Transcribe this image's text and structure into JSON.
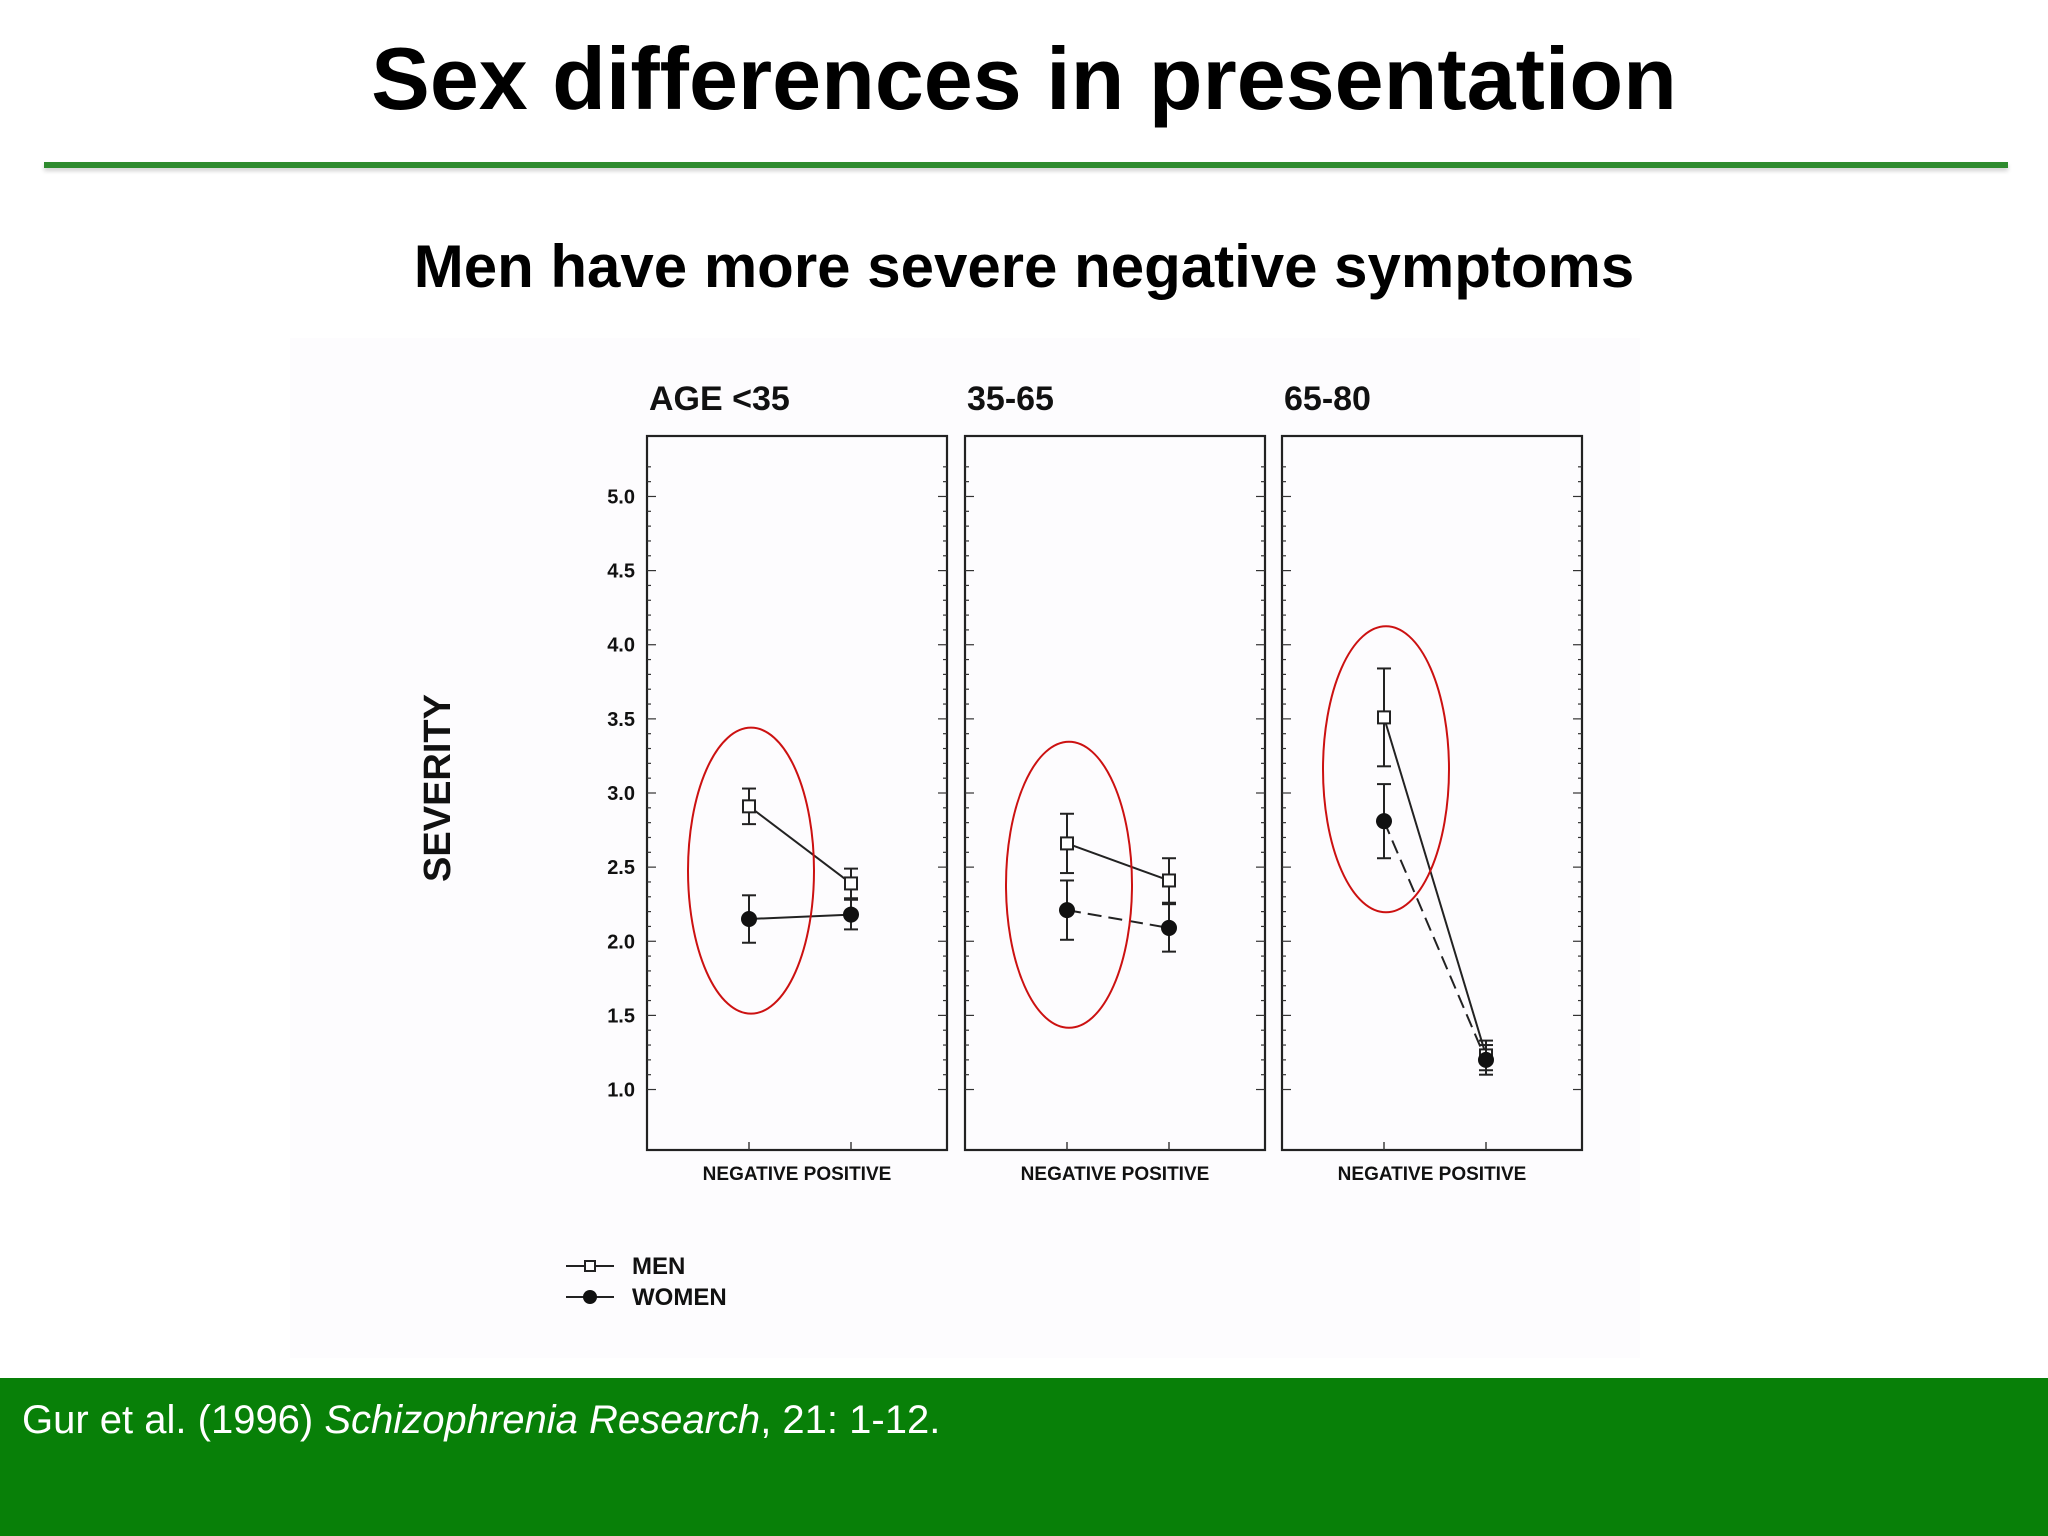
{
  "slide": {
    "title": "Sex differences in presentation",
    "subtitle": "Men have more severe negative symptoms"
  },
  "citation": {
    "authors": "Gur et al. (1996) ",
    "journal": "Schizophrenia Research",
    "rest": ", 21: 1-12."
  },
  "colors": {
    "title_rule": "#2e8b2e",
    "footer": "#088008",
    "highlight_ellipse": "#cc1111"
  },
  "chart_data": {
    "type": "line",
    "ylabel": "SEVERITY",
    "ylim": [
      0.7,
      5.3
    ],
    "yticks": [
      "1.0",
      "1.5",
      "2.0",
      "2.5",
      "3.0",
      "3.5",
      "4.0",
      "4.5",
      "5.0"
    ],
    "categories": [
      "NEGATIVE",
      "POSITIVE"
    ],
    "panels": [
      {
        "title": "AGE <35",
        "xlabel": "NEGATIVE POSITIVE",
        "series": [
          {
            "name": "MEN",
            "values": [
              2.91,
              2.39
            ],
            "err": [
              0.12,
              0.1
            ]
          },
          {
            "name": "WOMEN",
            "values": [
              2.15,
              2.18
            ],
            "err": [
              0.16,
              0.1
            ]
          }
        ],
        "highlight": "NEGATIVE"
      },
      {
        "title": "35-65",
        "xlabel": "NEGATIVE POSITIVE",
        "series": [
          {
            "name": "MEN",
            "values": [
              2.66,
              2.41
            ],
            "err": [
              0.2,
              0.15
            ]
          },
          {
            "name": "WOMEN",
            "values": [
              2.21,
              2.09
            ],
            "err": [
              0.2,
              0.16
            ]
          }
        ],
        "highlight": "NEGATIVE"
      },
      {
        "title": "65-80",
        "xlabel": "NEGATIVE POSITIVE",
        "series": [
          {
            "name": "MEN",
            "values": [
              3.51,
              1.23
            ],
            "err": [
              0.33,
              0.1
            ]
          },
          {
            "name": "WOMEN",
            "values": [
              2.81,
              1.2
            ],
            "err": [
              0.25,
              0.1
            ]
          }
        ],
        "highlight": "NEGATIVE"
      }
    ],
    "legend": {
      "placement": "bottom-left",
      "entries": [
        {
          "label": "MEN",
          "marker": "open-square",
          "line": "solid"
        },
        {
          "label": "WOMEN",
          "marker": "filled-circle",
          "line": "solid"
        }
      ]
    },
    "grid": false
  }
}
